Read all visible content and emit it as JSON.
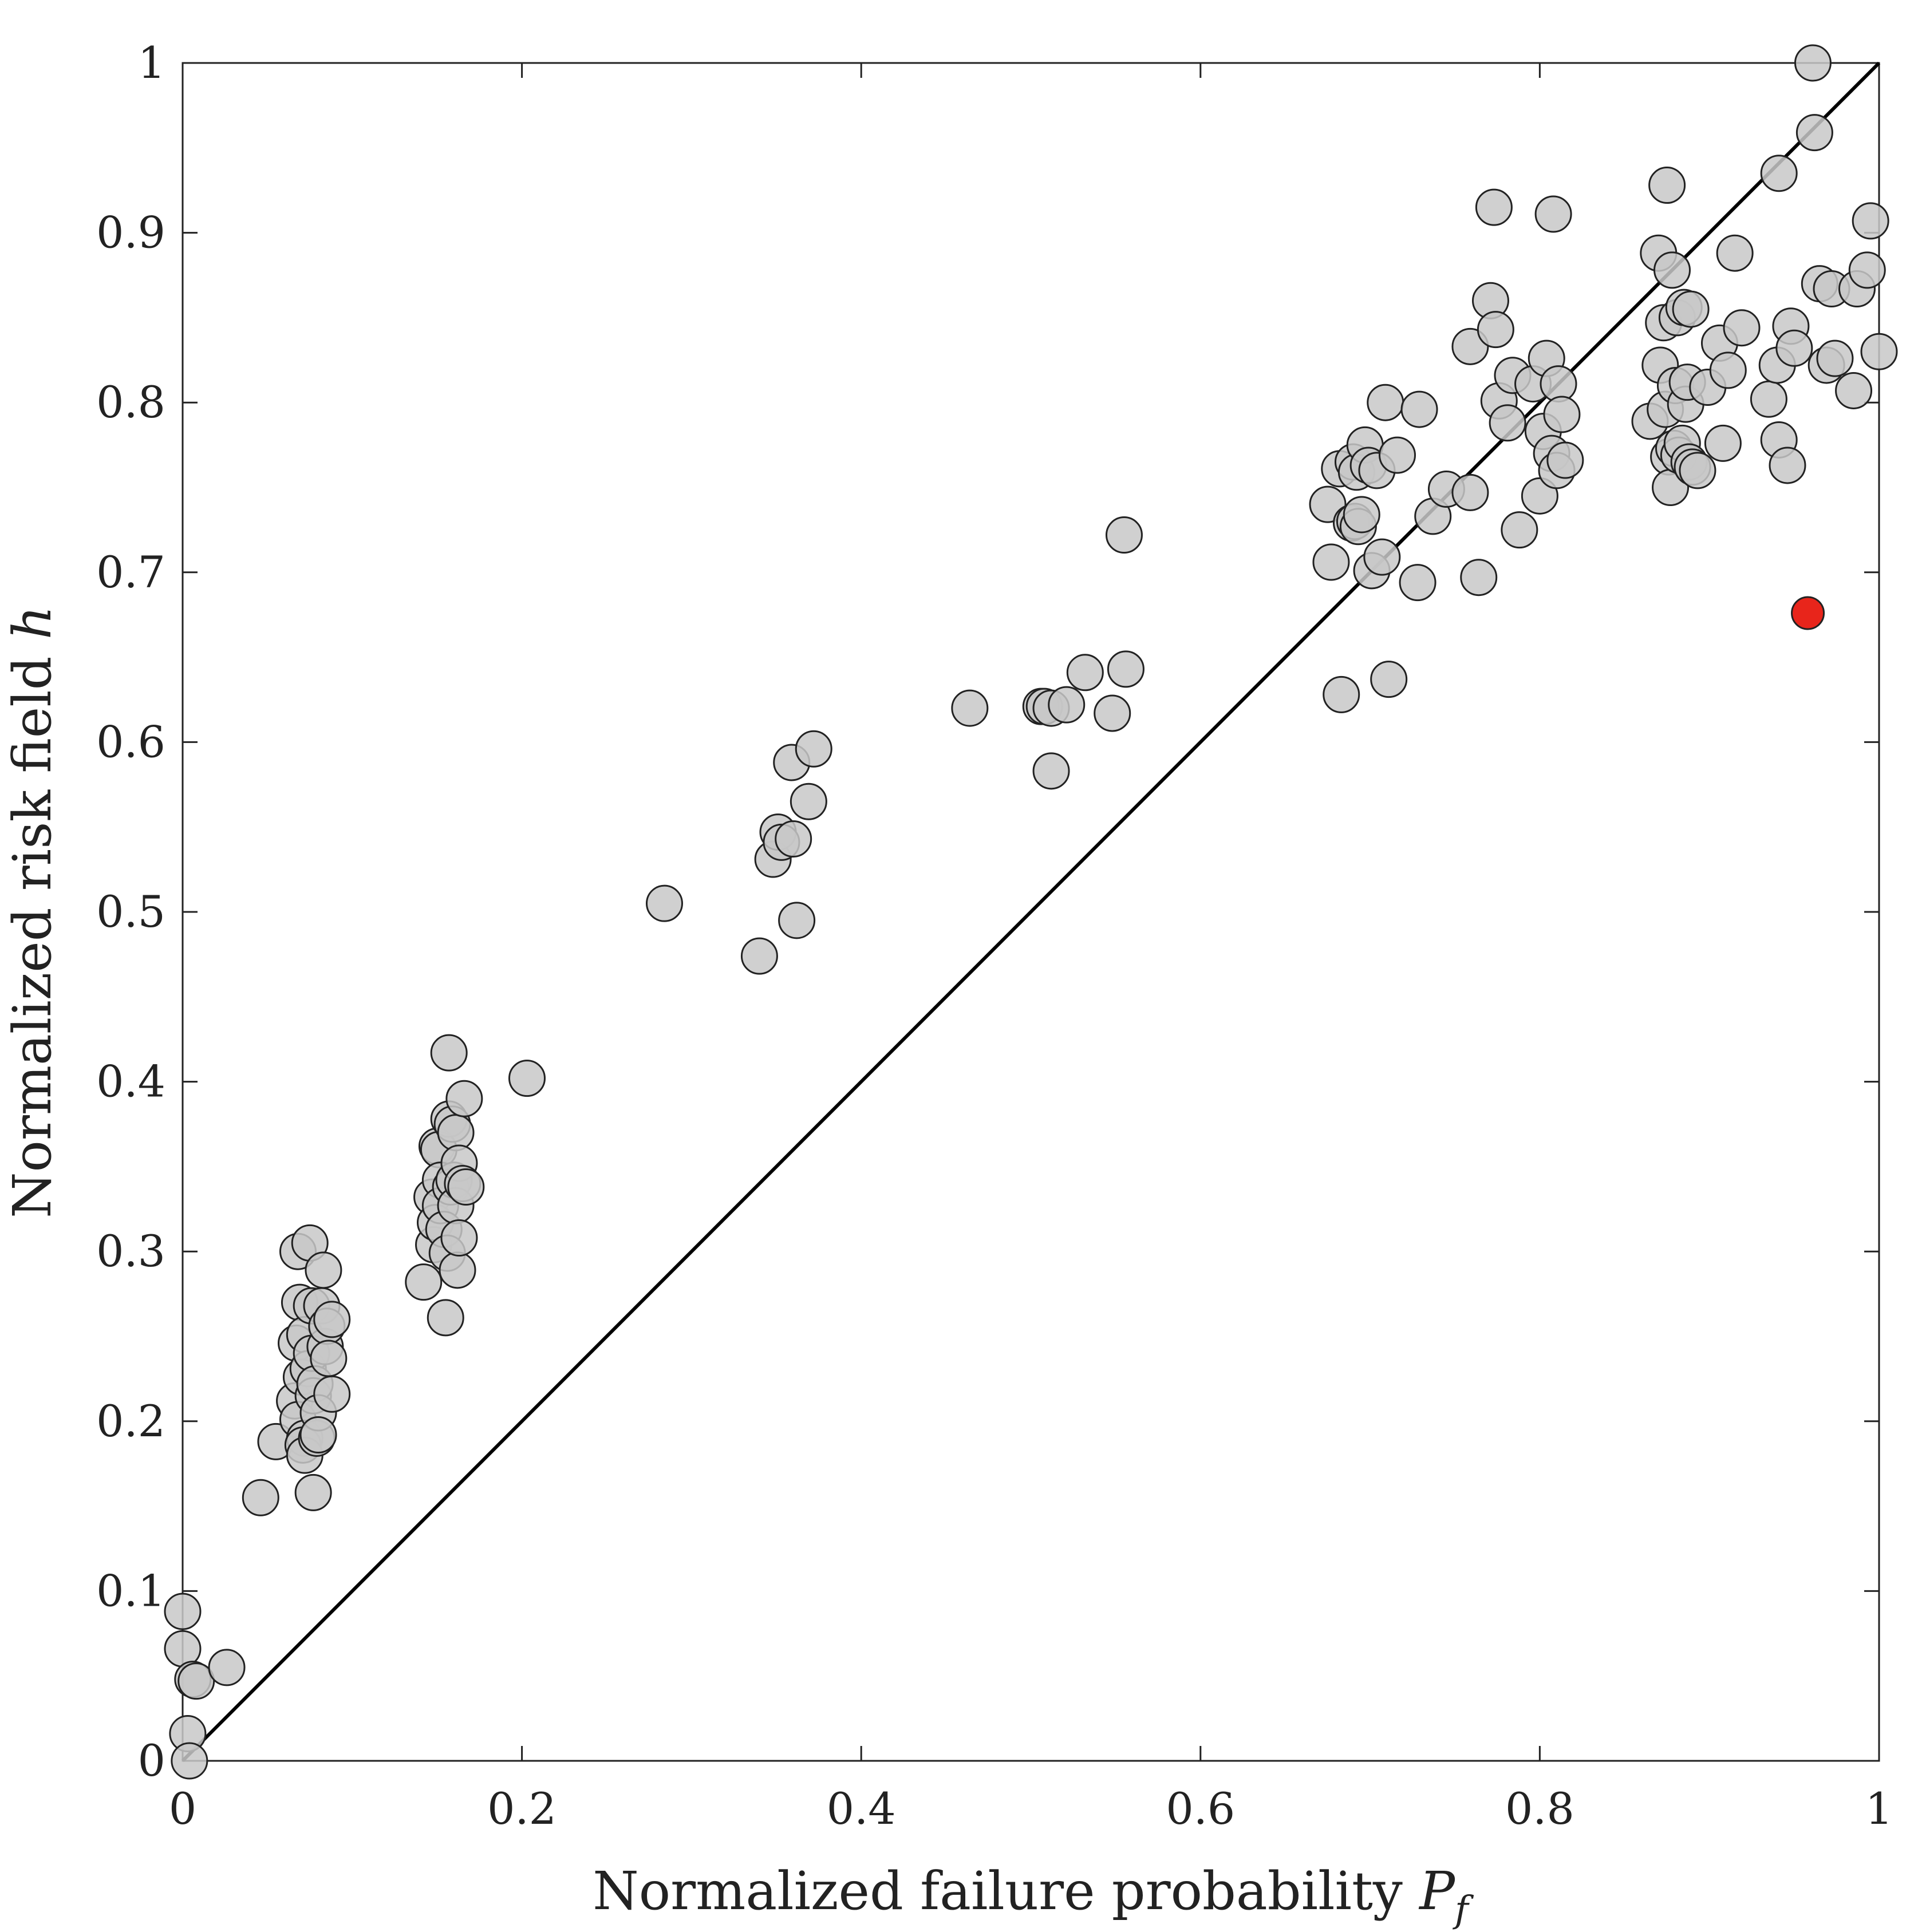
{
  "chart_data": {
    "type": "scatter",
    "xlabel": "Normalized failure probability",
    "xlabel_symbol": "P",
    "xlabel_subscript": "f",
    "ylabel": "Normalized risk field",
    "ylabel_symbol": "h",
    "xlim": [
      0,
      1
    ],
    "ylim": [
      0,
      1
    ],
    "x_ticks": [
      0,
      0.2,
      0.4,
      0.6,
      0.8,
      1
    ],
    "x_tick_labels": [
      "0",
      "0.2",
      "0.4",
      "0.6",
      "0.8",
      "1"
    ],
    "y_ticks": [
      0,
      0.1,
      0.2,
      0.3,
      0.4,
      0.5,
      0.6,
      0.7,
      0.8,
      0.9,
      1
    ],
    "y_tick_labels": [
      "0",
      "0.1",
      "0.2",
      "0.3",
      "0.4",
      "0.5",
      "0.6",
      "0.7",
      "0.8",
      "0.9",
      "1"
    ],
    "grid": false,
    "reference_line": {
      "x": [
        0,
        1
      ],
      "y": [
        0,
        1
      ],
      "color": "#000000"
    },
    "marker_colors": {
      "fill": "#c8c8c8",
      "edge": "#222222",
      "highlight": "#e8251b"
    },
    "series": [
      {
        "points": [
          [
            0.0,
            0.088
          ],
          [
            0.0,
            0.066
          ],
          [
            0.003,
            0.016
          ],
          [
            0.004,
            0.0
          ],
          [
            0.006,
            0.048
          ],
          [
            0.008,
            0.047
          ],
          [
            0.026,
            0.055
          ],
          [
            0.046,
            0.155
          ],
          [
            0.055,
            0.188
          ],
          [
            0.068,
            0.3
          ],
          [
            0.069,
            0.27
          ],
          [
            0.067,
            0.246
          ],
          [
            0.066,
            0.212
          ],
          [
            0.068,
            0.201
          ],
          [
            0.07,
            0.226
          ],
          [
            0.072,
            0.19
          ],
          [
            0.071,
            0.186
          ],
          [
            0.072,
            0.18
          ],
          [
            0.072,
            0.251
          ],
          [
            0.074,
            0.231
          ],
          [
            0.075,
            0.305
          ],
          [
            0.076,
            0.268
          ],
          [
            0.076,
            0.24
          ],
          [
            0.077,
            0.158
          ],
          [
            0.077,
            0.215
          ],
          [
            0.078,
            0.222
          ],
          [
            0.079,
            0.19
          ],
          [
            0.08,
            0.205
          ],
          [
            0.08,
            0.192
          ],
          [
            0.082,
            0.268
          ],
          [
            0.083,
            0.289
          ],
          [
            0.084,
            0.244
          ],
          [
            0.085,
            0.256
          ],
          [
            0.086,
            0.237
          ],
          [
            0.088,
            0.26
          ],
          [
            0.088,
            0.216
          ],
          [
            0.142,
            0.282
          ],
          [
            0.147,
            0.332
          ],
          [
            0.148,
            0.304
          ],
          [
            0.149,
            0.317
          ],
          [
            0.15,
            0.362
          ],
          [
            0.151,
            0.36
          ],
          [
            0.152,
            0.342
          ],
          [
            0.152,
            0.327
          ],
          [
            0.154,
            0.313
          ],
          [
            0.155,
            0.261
          ],
          [
            0.156,
            0.299
          ],
          [
            0.157,
            0.378
          ],
          [
            0.157,
            0.417
          ],
          [
            0.158,
            0.338
          ],
          [
            0.159,
            0.375
          ],
          [
            0.16,
            0.342
          ],
          [
            0.161,
            0.327
          ],
          [
            0.161,
            0.37
          ],
          [
            0.162,
            0.289
          ],
          [
            0.163,
            0.308
          ],
          [
            0.163,
            0.352
          ],
          [
            0.165,
            0.34
          ],
          [
            0.166,
            0.39
          ],
          [
            0.167,
            0.338
          ],
          [
            0.203,
            0.402
          ],
          [
            0.284,
            0.505
          ],
          [
            0.34,
            0.474
          ],
          [
            0.348,
            0.531
          ],
          [
            0.351,
            0.547
          ],
          [
            0.353,
            0.541
          ],
          [
            0.359,
            0.588
          ],
          [
            0.36,
            0.543
          ],
          [
            0.362,
            0.495
          ],
          [
            0.369,
            0.565
          ],
          [
            0.372,
            0.596
          ],
          [
            0.464,
            0.62
          ],
          [
            0.506,
            0.621
          ],
          [
            0.508,
            0.621
          ],
          [
            0.512,
            0.62
          ],
          [
            0.512,
            0.583
          ],
          [
            0.521,
            0.622
          ],
          [
            0.532,
            0.641
          ],
          [
            0.548,
            0.617
          ],
          [
            0.555,
            0.722
          ],
          [
            0.556,
            0.643
          ],
          [
            0.675,
            0.74
          ],
          [
            0.677,
            0.706
          ],
          [
            0.682,
            0.761
          ],
          [
            0.683,
            0.628
          ],
          [
            0.689,
            0.729
          ],
          [
            0.69,
            0.765
          ],
          [
            0.691,
            0.73
          ],
          [
            0.692,
            0.759
          ],
          [
            0.693,
            0.727
          ],
          [
            0.695,
            0.734
          ],
          [
            0.697,
            0.775
          ],
          [
            0.699,
            0.763
          ],
          [
            0.701,
            0.701
          ],
          [
            0.704,
            0.76
          ],
          [
            0.707,
            0.709
          ],
          [
            0.709,
            0.8
          ],
          [
            0.711,
            0.637
          ],
          [
            0.716,
            0.769
          ],
          [
            0.728,
            0.694
          ],
          [
            0.729,
            0.796
          ],
          [
            0.737,
            0.733
          ],
          [
            0.745,
            0.749
          ],
          [
            0.759,
            0.833
          ],
          [
            0.759,
            0.747
          ],
          [
            0.764,
            0.697
          ],
          [
            0.771,
            0.86
          ],
          [
            0.773,
            0.915
          ],
          [
            0.774,
            0.843
          ],
          [
            0.776,
            0.801
          ],
          [
            0.781,
            0.788
          ],
          [
            0.784,
            0.816
          ],
          [
            0.788,
            0.725
          ],
          [
            0.796,
            0.811
          ],
          [
            0.8,
            0.745
          ],
          [
            0.802,
            0.783
          ],
          [
            0.804,
            0.826
          ],
          [
            0.807,
            0.77
          ],
          [
            0.808,
            0.911
          ],
          [
            0.81,
            0.76
          ],
          [
            0.811,
            0.811
          ],
          [
            0.813,
            0.793
          ],
          [
            0.815,
            0.766
          ],
          [
            0.865,
            0.789
          ],
          [
            0.87,
            0.888
          ],
          [
            0.871,
            0.822
          ],
          [
            0.873,
            0.847
          ],
          [
            0.874,
            0.796
          ],
          [
            0.875,
            0.928
          ],
          [
            0.876,
            0.768
          ],
          [
            0.877,
            0.75
          ],
          [
            0.878,
            0.878
          ],
          [
            0.879,
            0.773
          ],
          [
            0.88,
            0.81
          ],
          [
            0.881,
            0.85
          ],
          [
            0.882,
            0.769
          ],
          [
            0.884,
            0.776
          ],
          [
            0.885,
            0.856
          ],
          [
            0.886,
            0.799
          ],
          [
            0.887,
            0.812
          ],
          [
            0.888,
            0.765
          ],
          [
            0.889,
            0.855
          ],
          [
            0.89,
            0.762
          ],
          [
            0.893,
            0.76
          ],
          [
            0.899,
            0.809
          ],
          [
            0.906,
            0.835
          ],
          [
            0.908,
            0.776
          ],
          [
            0.911,
            0.819
          ],
          [
            0.915,
            0.888
          ],
          [
            0.919,
            0.844
          ],
          [
            0.935,
            0.802
          ],
          [
            0.94,
            0.822
          ],
          [
            0.941,
            0.778
          ],
          [
            0.941,
            0.935
          ],
          [
            0.946,
            0.763
          ],
          [
            0.948,
            0.845
          ],
          [
            0.95,
            0.832
          ],
          [
            0.961,
            1.0
          ],
          [
            0.962,
            0.959
          ],
          [
            0.965,
            0.87
          ],
          [
            0.969,
            0.822
          ],
          [
            0.972,
            0.867
          ],
          [
            0.974,
            0.826
          ],
          [
            0.985,
            0.807
          ],
          [
            0.987,
            0.867
          ],
          [
            0.993,
            0.878
          ],
          [
            0.995,
            0.907
          ],
          [
            1.0,
            0.83
          ]
        ]
      },
      {
        "highlight": true,
        "points": [
          [
            0.958,
            0.676
          ]
        ]
      }
    ]
  }
}
